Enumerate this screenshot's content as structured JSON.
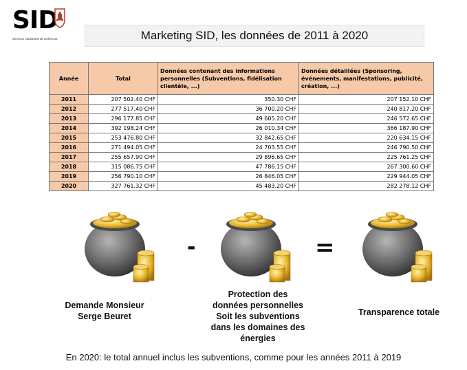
{
  "logo": {
    "name": "SID",
    "subtitle": "Services industriels de Delémont"
  },
  "title": "Marketing SID, les données de 2011 à 2020",
  "table": {
    "headers": [
      "Année",
      "Total",
      "Données contenant des informations personnelles (Subventions, fidélisation clientèle, ...)",
      "Données détaillées (Sponsoring, événements, manifestations, publicité, création, ...)"
    ],
    "rows": [
      {
        "year": "2011",
        "total": "207 502.40 CHF",
        "personal": "350.30 CHF",
        "detailed": "207 152.10 CHF"
      },
      {
        "year": "2012",
        "total": "277 517.40 CHF",
        "personal": "36 700.20 CHF",
        "detailed": "240 817.20 CHF"
      },
      {
        "year": "2013",
        "total": "296 177.85 CHF",
        "personal": "49 605.20 CHF",
        "detailed": "246 572.65 CHF"
      },
      {
        "year": "2014",
        "total": "392 198.24 CHF",
        "personal": "26 010.34 CHF",
        "detailed": "366 187.90 CHF"
      },
      {
        "year": "2015",
        "total": "253 476.80 CHF",
        "personal": "32 842.65 CHF",
        "detailed": "220 634.15 CHF"
      },
      {
        "year": "2016",
        "total": "271 494.05 CHF",
        "personal": "24 703.55 CHF",
        "detailed": "246 790.50 CHF"
      },
      {
        "year": "2017",
        "total": "255 657.90 CHF",
        "personal": "29 896.65 CHF",
        "detailed": "225 761.25 CHF"
      },
      {
        "year": "2018",
        "total": "315 086.75 CHF",
        "personal": "47 786.15 CHF",
        "detailed": "267 300.60 CHF"
      },
      {
        "year": "2019",
        "total": "256 790.10 CHF",
        "personal": "26 846.05 CHF",
        "detailed": "229 944.05 CHF"
      },
      {
        "year": "2020",
        "total": "327 761.32 CHF",
        "personal": "45 483.20 CHF",
        "detailed": "282 278.12 CHF"
      }
    ]
  },
  "equation": {
    "minus": "-",
    "equals": "=",
    "captions": [
      [
        "Demande Monsieur",
        "Serge Beuret"
      ],
      [
        "Protection des",
        "données personnelles",
        "Soit les subventions",
        "dans les domaines des",
        "énergies"
      ],
      [
        "Transparence totale"
      ]
    ]
  },
  "footnote": "En 2020: le total annuel inclus les subventions, comme pour les années 2011 à 2019",
  "colors": {
    "header_fill": "#f6caa8",
    "pot": "#6e6e6e",
    "gold": "#e7b52c"
  }
}
